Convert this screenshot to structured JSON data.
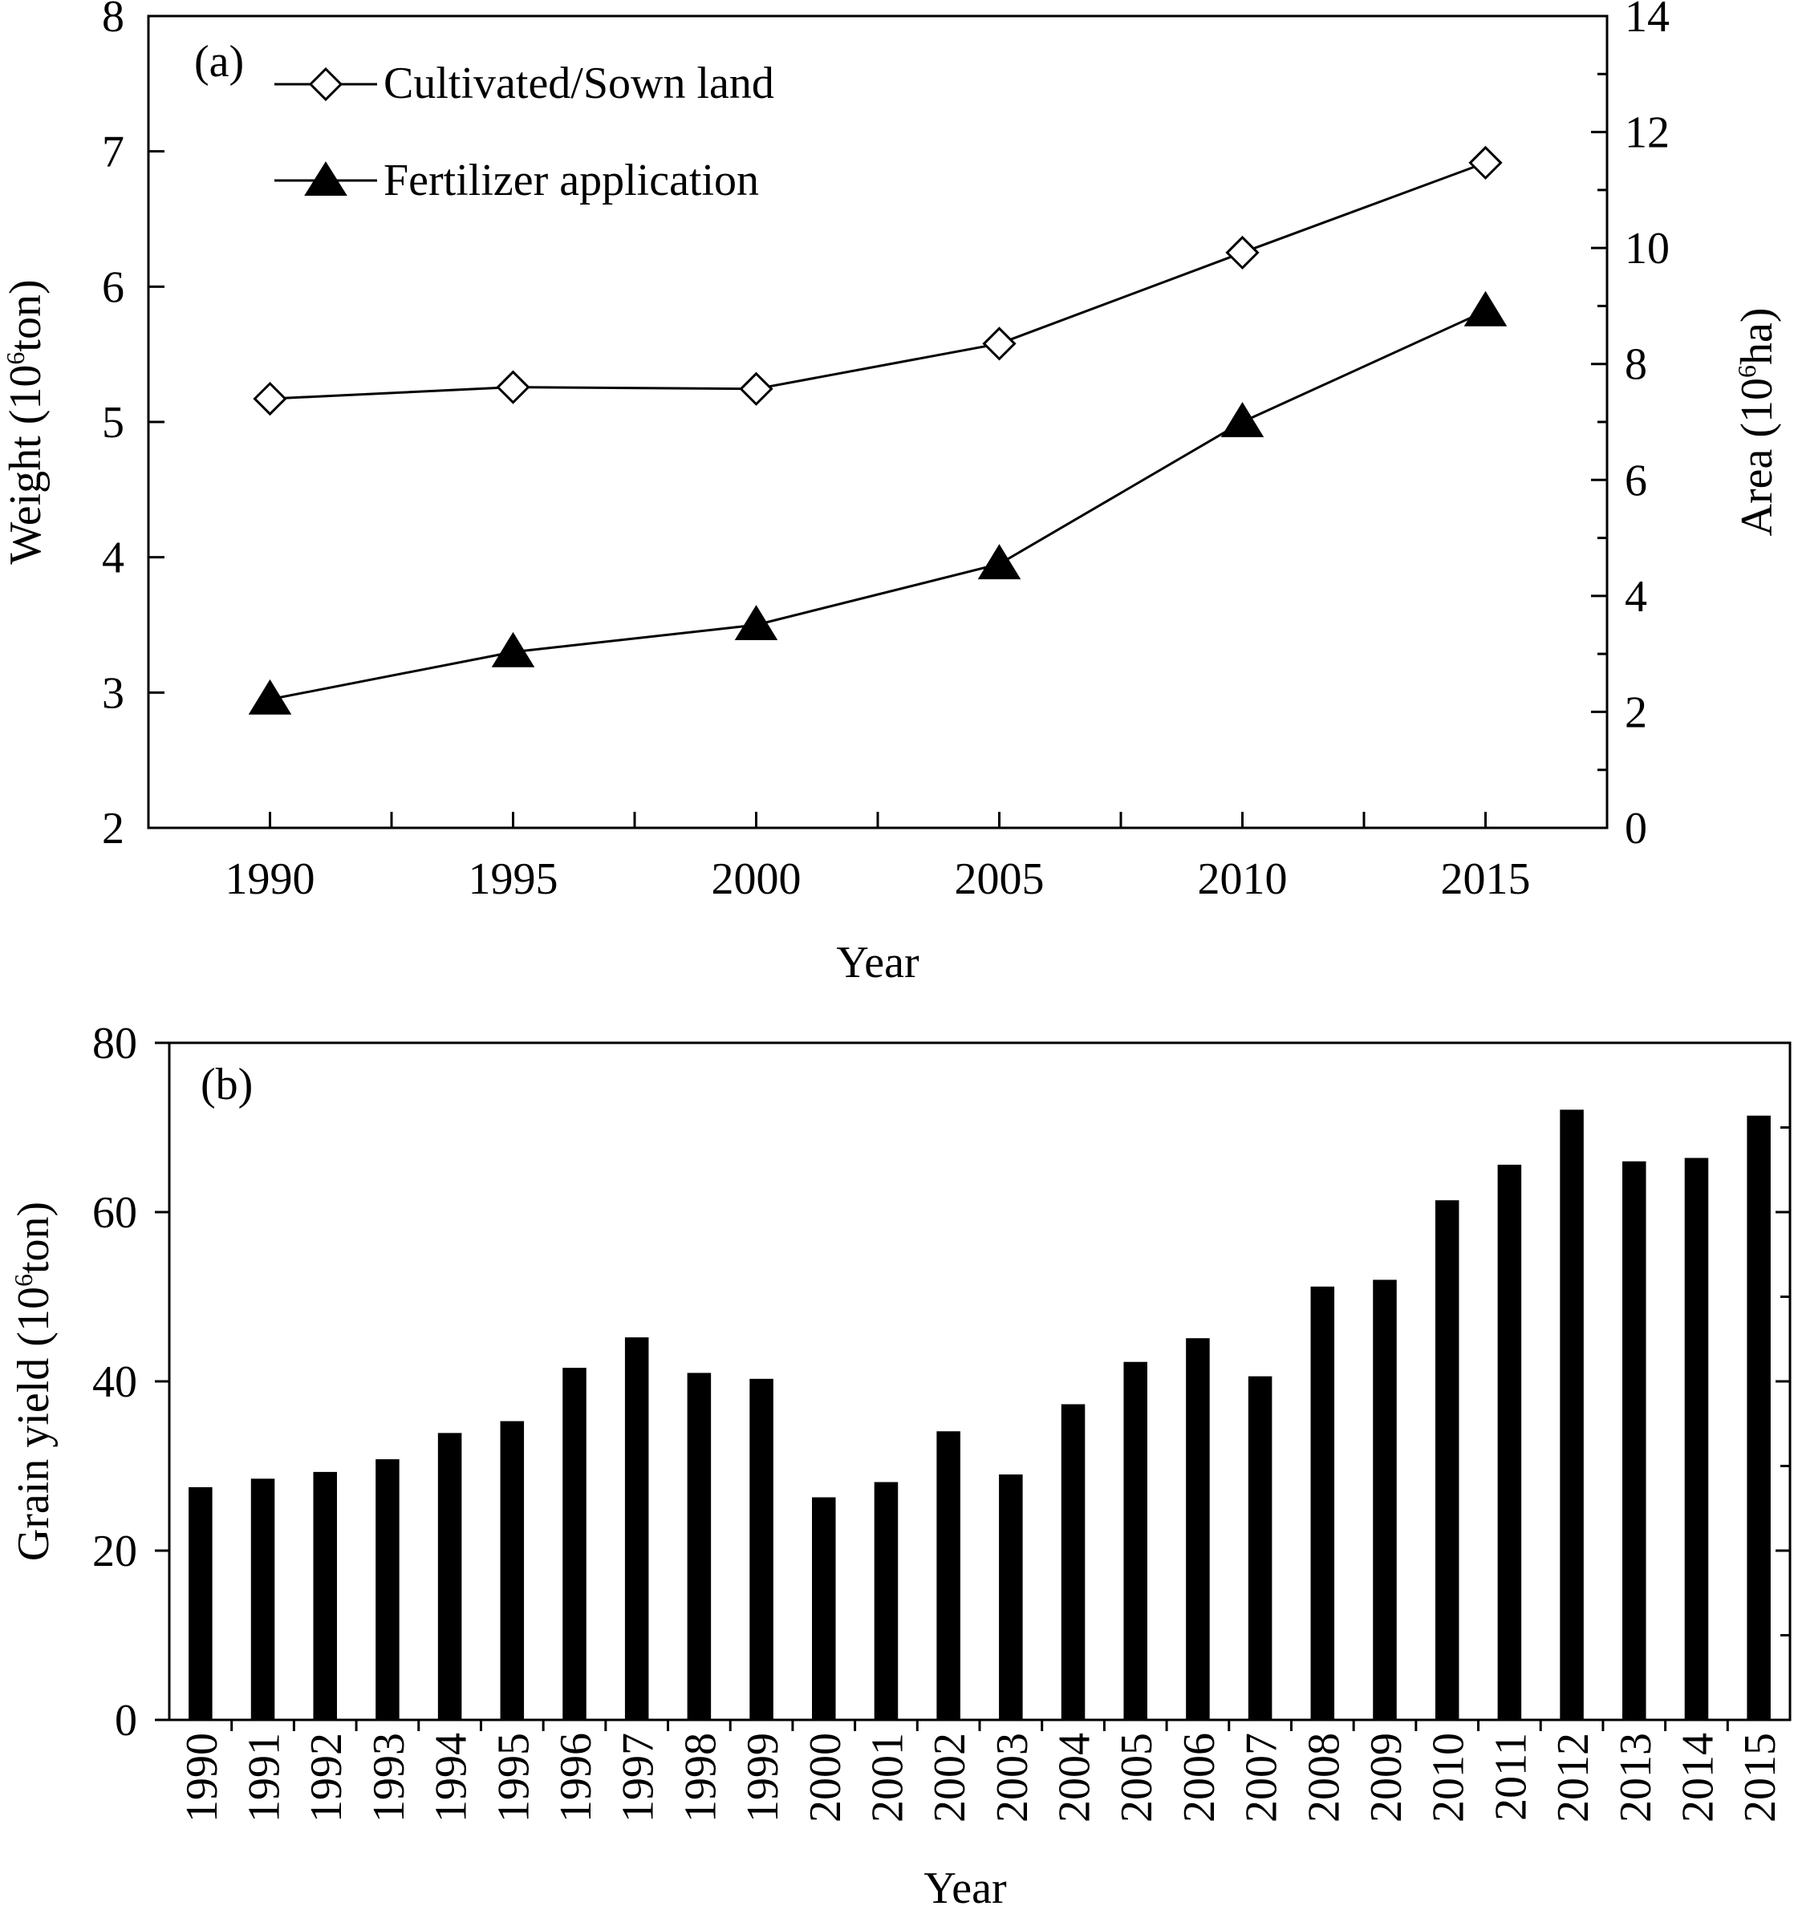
{
  "chart_data": [
    {
      "type": "line",
      "panel_label": "(a)",
      "xlabel": "Year",
      "ylabel_main": "Weight (10",
      "ylabel_sup": "6",
      "ylabel_end": "ton)",
      "y2label_main": "Area (10",
      "y2label_sup": "6",
      "y2label_end": "ha)",
      "x": [
        1990,
        1995,
        2000,
        2005,
        2010,
        2015
      ],
      "xticks": [
        "1990",
        "1995",
        "2000",
        "2005",
        "2010",
        "2015"
      ],
      "xlim": [
        1987.5,
        2017.5
      ],
      "ylim": [
        2,
        8
      ],
      "yticks": [
        "2",
        "3",
        "4",
        "5",
        "6",
        "7",
        "8"
      ],
      "y2lim": [
        0,
        14
      ],
      "y2ticks": [
        "0",
        "2",
        "4",
        "6",
        "8",
        "10",
        "12",
        "14"
      ],
      "grid": false,
      "legend_position": "top-left",
      "series": [
        {
          "name": "Cultivated/Sown land",
          "axis": "right",
          "marker": "open-diamond",
          "values": [
            7.4,
            7.6,
            7.57,
            8.35,
            9.92,
            11.47
          ]
        },
        {
          "name": "Fertilizer application",
          "axis": "left",
          "marker": "filled-triangle",
          "values": [
            2.95,
            3.3,
            3.5,
            3.95,
            5.0,
            5.82
          ]
        }
      ]
    },
    {
      "type": "bar",
      "panel_label": "(b)",
      "xlabel": "Year",
      "ylabel_main": "Grain yield (10",
      "ylabel_sup": "6",
      "ylabel_end": "ton)",
      "categories": [
        "1990",
        "1991",
        "1992",
        "1993",
        "1994",
        "1995",
        "1996",
        "1997",
        "1998",
        "1999",
        "2000",
        "2001",
        "2002",
        "2003",
        "2004",
        "2005",
        "2006",
        "2007",
        "2008",
        "2009",
        "2010",
        "2011",
        "2012",
        "2013",
        "2014",
        "2015"
      ],
      "values": [
        27.5,
        28.5,
        29.3,
        30.8,
        33.9,
        35.3,
        41.6,
        45.2,
        41.0,
        40.3,
        26.3,
        28.1,
        34.1,
        29.0,
        37.3,
        42.3,
        45.1,
        40.6,
        51.2,
        52.0,
        61.4,
        65.6,
        72.1,
        66.0,
        66.4,
        71.4
      ],
      "ylim": [
        0,
        80
      ],
      "yticks": [
        "0",
        "20",
        "40",
        "60",
        "80"
      ],
      "bar_color": "#000000",
      "grid": false
    }
  ]
}
